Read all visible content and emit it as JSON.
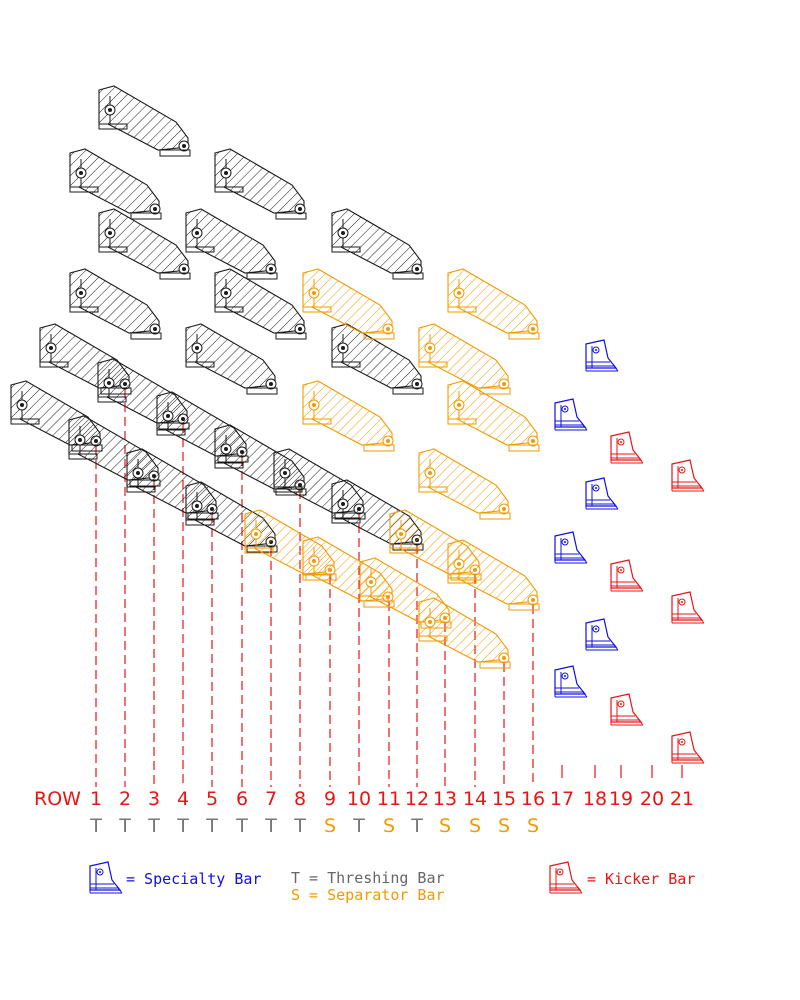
{
  "colors": {
    "thresher": "#1a1a1a",
    "separator": "#f29a00",
    "specialty": "#1010e0",
    "kicker": "#e81515",
    "type_t": "#777777",
    "type_s": "#f29a00"
  },
  "row_prefix": "ROW",
  "rows": [
    "1",
    "2",
    "3",
    "4",
    "5",
    "6",
    "7",
    "8",
    "9",
    "10",
    "11",
    "12",
    "13",
    "14",
    "15",
    "16",
    "17",
    "18",
    "19",
    "20",
    "21"
  ],
  "row_types": [
    "T",
    "T",
    "T",
    "T",
    "T",
    "T",
    "T",
    "T",
    "S",
    "T",
    "S",
    "T",
    "S",
    "S",
    "S",
    "S"
  ],
  "legend": {
    "specialty": "= Specialty Bar",
    "threshing": "T = Threshing Bar",
    "separator": "S = Separator Bar",
    "kicker": "= Kicker Bar"
  }
}
